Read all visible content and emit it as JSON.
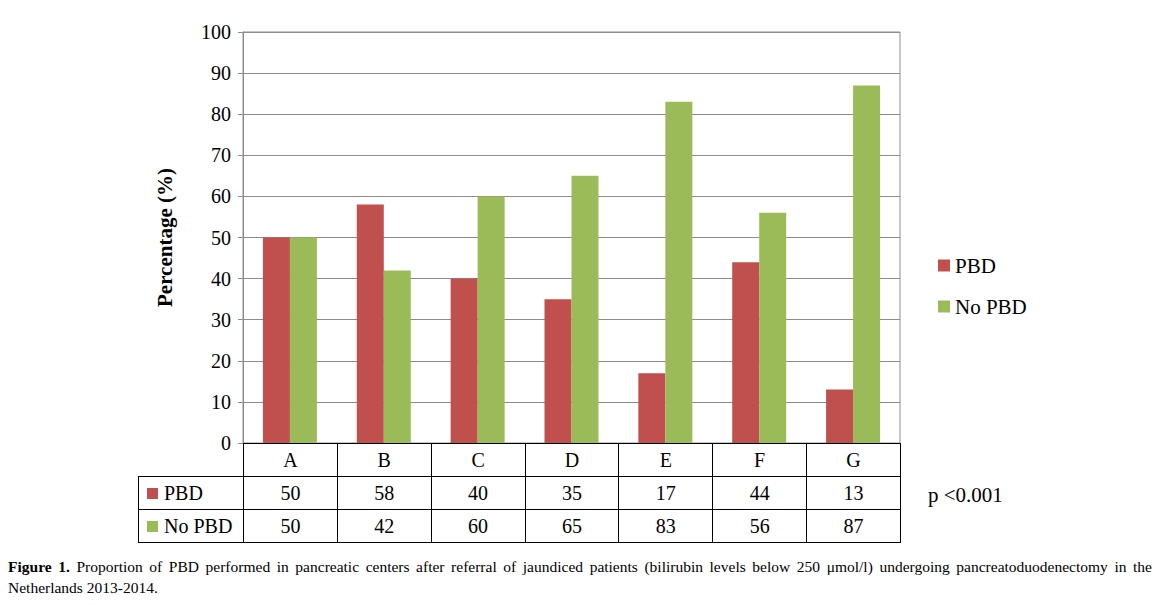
{
  "chart_data": {
    "type": "bar",
    "categories": [
      "A",
      "B",
      "C",
      "D",
      "E",
      "F",
      "G"
    ],
    "series": [
      {
        "name": "PBD",
        "color": "#c0504d",
        "values": [
          50,
          58,
          40,
          35,
          17,
          44,
          13
        ]
      },
      {
        "name": "No PBD",
        "color": "#9bbb59",
        "values": [
          50,
          42,
          60,
          65,
          83,
          56,
          87
        ]
      }
    ],
    "ylabel": "Percentage (%)",
    "ylim": [
      0,
      100
    ],
    "yticks": [
      0,
      10,
      20,
      30,
      40,
      50,
      60,
      70,
      80,
      90,
      100
    ],
    "grid": true,
    "legend": "right",
    "annotation": "p <0.001",
    "caption": {
      "label": "Figure 1.",
      "text": "Proportion of PBD performed in pancreatic centers after referral of jaundiced patients (bilirubin levels below 250 μmol/l) undergoing pancreatoduodenectomy in the Netherlands 2013-2014."
    }
  }
}
